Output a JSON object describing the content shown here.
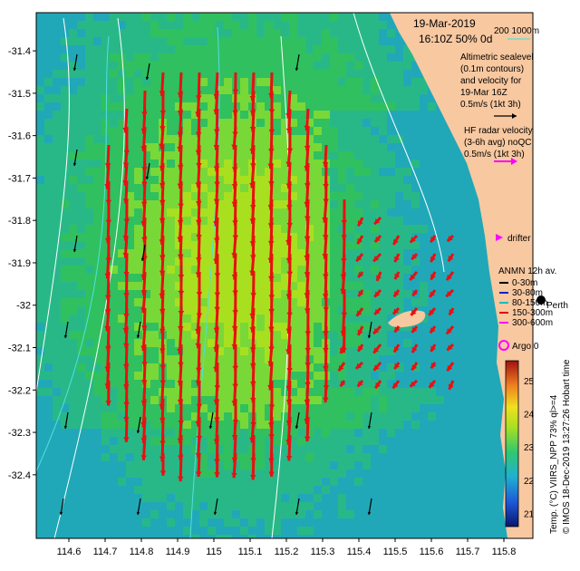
{
  "header": {
    "date": "19-Mar-2019",
    "time_pct": "16:10Z  50% 0d",
    "depth_legend": "200  1000m"
  },
  "altimetry": {
    "lines": [
      "Altimetric sealevel",
      "(0.1m contours)",
      "and velocity for",
      "19-Mar 16Z",
      "0.5m/s (1kt 3h)"
    ]
  },
  "hf_radar": {
    "lines": [
      "HF radar velocity",
      "(3-6h avg) noQC",
      "0.5m/s (1kt 3h)"
    ]
  },
  "drifter_label": "drifter",
  "anmn": {
    "title": "ANMN 12h av.",
    "items": [
      "0-30m",
      "30-80m",
      "80-150m",
      "150-300m",
      "300-600m"
    ],
    "colors": [
      "#000000",
      "#0022cc",
      "#00bfbf",
      "#e00000",
      "#ff00ff"
    ]
  },
  "perth_label": "Perth",
  "argo_label": "Argo 0",
  "colorbar": {
    "label": "Temp. (°C) VIIRS_NPP 73% ql>=4",
    "ticks": [
      "25",
      "24",
      "23",
      "22",
      "21"
    ],
    "min": 20.6,
    "max": 25.6
  },
  "credit": "© IMOS 18-Dec-2019 13:27:26 Hobart time",
  "axes": {
    "x_ticks": [
      "114.6",
      "114.7",
      "114.8",
      "114.9",
      "115",
      "115.1",
      "115.2",
      "115.3",
      "115.4",
      "115.5",
      "115.6",
      "115.7",
      "115.8"
    ],
    "y_ticks": [
      "-31.4",
      "-31.5",
      "-31.6",
      "-31.7",
      "-31.8",
      "-31.9",
      "-32",
      "-32.1",
      "-32.2",
      "-32.3",
      "-32.4"
    ],
    "lon_range": [
      114.51,
      115.88
    ],
    "lat_range": [
      -32.55,
      -31.31
    ]
  },
  "colors": {
    "land": "#f8c8a0",
    "sst_warm": "#a8e020",
    "sst_mid": "#30c060",
    "sst_cool": "#20a8b8",
    "hf_arrow": "#e81010",
    "alt_arrow": "#000000"
  }
}
